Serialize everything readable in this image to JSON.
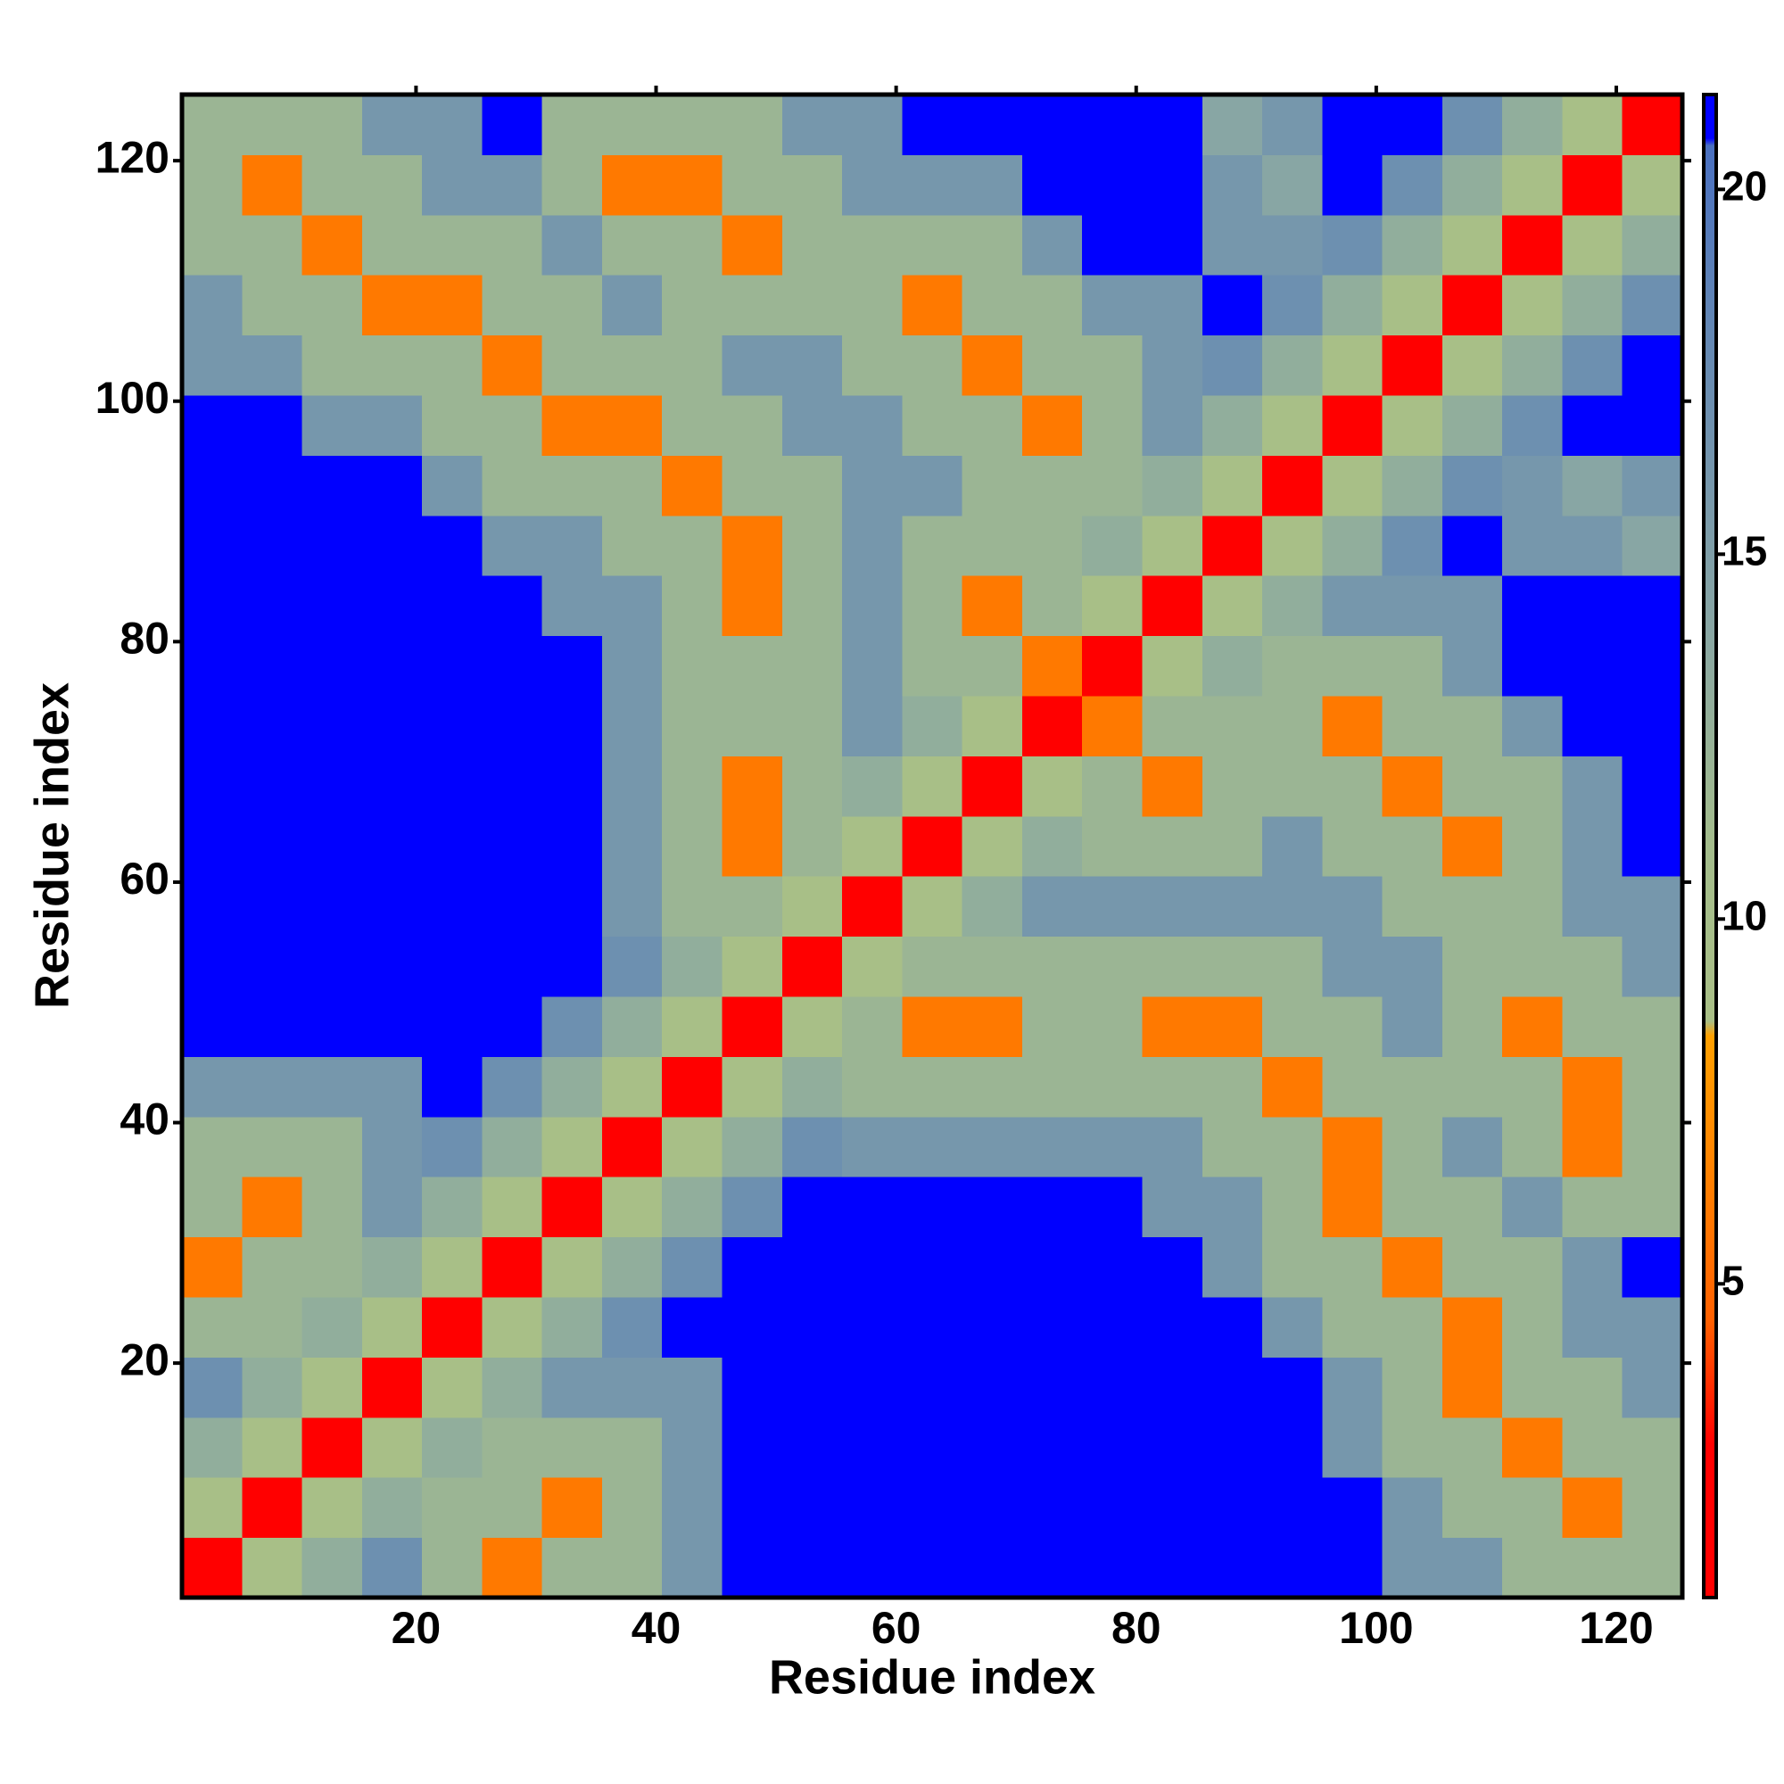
{
  "chart_data": {
    "type": "heatmap",
    "xlabel": "Residue index",
    "ylabel": "Residue index",
    "xlim": [
      0.5,
      125.5
    ],
    "ylim": [
      0.5,
      125.5
    ],
    "xticks": [
      20,
      40,
      60,
      80,
      100,
      120
    ],
    "yticks": [
      20,
      40,
      60,
      80,
      100,
      120
    ],
    "xbins": [
      0.5,
      5.5,
      10.5,
      15.5,
      20.5,
      25.5,
      30.5,
      35.5,
      40.5,
      45.5,
      50.5,
      55.5,
      60.5,
      65.5,
      70.5,
      75.5,
      80.5,
      85.5,
      90.5,
      95.5,
      100.5,
      105.5,
      110.5,
      115.5,
      120.5,
      125.5
    ],
    "ybins": [
      0.5,
      5.5,
      10.5,
      15.5,
      20.5,
      25.5,
      30.5,
      35.5,
      40.5,
      45.5,
      50.5,
      55.5,
      60.5,
      65.5,
      70.5,
      75.5,
      80.5,
      85.5,
      90.5,
      95.5,
      100.5,
      105.5,
      110.5,
      115.5,
      120.5,
      125.5
    ],
    "z": [
      [
        2,
        9,
        13,
        17,
        12,
        6,
        12,
        12,
        16,
        21,
        21,
        21,
        21,
        21,
        21,
        21,
        21,
        21,
        21,
        21,
        16,
        16,
        12,
        12,
        12
      ],
      [
        9,
        2,
        9,
        13,
        12,
        12,
        6,
        12,
        16,
        21,
        21,
        21,
        21,
        21,
        21,
        21,
        21,
        21,
        21,
        21,
        16,
        12,
        12,
        6,
        12
      ],
      [
        13,
        9,
        2,
        9,
        13,
        12,
        12,
        12,
        16,
        21,
        21,
        21,
        21,
        21,
        21,
        21,
        21,
        21,
        21,
        16,
        12,
        12,
        6,
        12,
        12
      ],
      [
        17,
        13,
        9,
        2,
        9,
        13,
        16,
        16,
        16,
        21,
        21,
        21,
        21,
        21,
        21,
        21,
        21,
        21,
        21,
        16,
        12,
        6,
        12,
        12,
        16
      ],
      [
        12,
        12,
        13,
        9,
        2,
        9,
        13,
        17,
        21,
        21,
        21,
        21,
        21,
        21,
        21,
        21,
        21,
        21,
        16,
        12,
        12,
        6,
        12,
        16,
        16
      ],
      [
        6,
        12,
        12,
        13,
        9,
        2,
        9,
        13,
        17,
        21,
        21,
        21,
        21,
        21,
        21,
        21,
        21,
        16,
        12,
        12,
        6,
        12,
        12,
        16,
        21
      ],
      [
        12,
        6,
        12,
        16,
        13,
        9,
        2,
        9,
        13,
        17,
        21,
        21,
        21,
        21,
        21,
        21,
        16,
        16,
        12,
        6,
        12,
        12,
        16,
        12,
        12
      ],
      [
        12,
        12,
        12,
        16,
        17,
        13,
        9,
        2,
        9,
        13,
        17,
        16,
        16,
        16,
        16,
        16,
        16,
        12,
        12,
        6,
        12,
        16,
        12,
        6,
        12
      ],
      [
        16,
        16,
        16,
        16,
        21,
        17,
        13,
        9,
        2,
        9,
        13,
        12,
        12,
        12,
        12,
        12,
        12,
        12,
        6,
        12,
        12,
        12,
        12,
        6,
        12
      ],
      [
        21,
        21,
        21,
        21,
        21,
        21,
        17,
        13,
        9,
        2,
        9,
        12,
        6,
        6,
        12,
        12,
        6,
        6,
        12,
        12,
        16,
        12,
        6,
        12,
        12
      ],
      [
        21,
        21,
        21,
        21,
        21,
        21,
        21,
        17,
        13,
        9,
        2,
        9,
        12,
        12,
        12,
        12,
        12,
        12,
        12,
        16,
        16,
        12,
        12,
        12,
        16
      ],
      [
        21,
        21,
        21,
        21,
        21,
        21,
        21,
        16,
        12,
        12,
        9,
        2,
        9,
        13,
        16,
        16,
        16,
        16,
        16,
        16,
        12,
        12,
        12,
        16,
        16
      ],
      [
        21,
        21,
        21,
        21,
        21,
        21,
        21,
        16,
        12,
        6,
        12,
        9,
        2,
        9,
        13,
        12,
        12,
        12,
        16,
        12,
        12,
        6,
        12,
        16,
        21
      ],
      [
        21,
        21,
        21,
        21,
        21,
        21,
        21,
        16,
        12,
        6,
        12,
        13,
        9,
        2,
        9,
        12,
        6,
        12,
        12,
        12,
        6,
        12,
        12,
        16,
        21
      ],
      [
        21,
        21,
        21,
        21,
        21,
        21,
        21,
        16,
        12,
        12,
        12,
        16,
        13,
        9,
        2,
        6,
        12,
        12,
        12,
        6,
        12,
        12,
        16,
        21,
        21
      ],
      [
        21,
        21,
        21,
        21,
        21,
        21,
        21,
        16,
        12,
        12,
        12,
        16,
        12,
        12,
        6,
        2,
        9,
        13,
        12,
        12,
        12,
        16,
        21,
        21,
        21
      ],
      [
        21,
        21,
        21,
        21,
        21,
        21,
        16,
        16,
        12,
        6,
        12,
        16,
        12,
        6,
        12,
        9,
        2,
        9,
        13,
        16,
        16,
        16,
        21,
        21,
        21
      ],
      [
        21,
        21,
        21,
        21,
        21,
        16,
        16,
        12,
        12,
        6,
        12,
        16,
        12,
        12,
        12,
        13,
        9,
        2,
        9,
        13,
        17,
        21,
        16,
        16,
        14
      ],
      [
        21,
        21,
        21,
        21,
        16,
        12,
        12,
        12,
        6,
        12,
        12,
        16,
        16,
        12,
        12,
        12,
        13,
        9,
        2,
        9,
        13,
        17,
        16,
        14,
        16
      ],
      [
        21,
        21,
        16,
        16,
        12,
        12,
        6,
        6,
        12,
        12,
        16,
        16,
        12,
        12,
        6,
        12,
        16,
        13,
        9,
        2,
        9,
        13,
        17,
        21,
        21
      ],
      [
        16,
        16,
        12,
        12,
        12,
        6,
        12,
        12,
        12,
        16,
        16,
        12,
        12,
        6,
        12,
        12,
        16,
        17,
        13,
        9,
        2,
        9,
        13,
        17,
        21
      ],
      [
        16,
        12,
        12,
        6,
        6,
        12,
        12,
        16,
        12,
        12,
        12,
        12,
        6,
        12,
        12,
        16,
        16,
        21,
        17,
        13,
        9,
        2,
        9,
        13,
        17
      ],
      [
        12,
        12,
        6,
        12,
        12,
        12,
        16,
        12,
        12,
        6,
        12,
        12,
        12,
        12,
        16,
        21,
        21,
        16,
        16,
        17,
        13,
        9,
        2,
        9,
        13
      ],
      [
        12,
        6,
        12,
        12,
        16,
        16,
        12,
        6,
        6,
        12,
        12,
        16,
        16,
        16,
        21,
        21,
        21,
        16,
        14,
        21,
        17,
        13,
        9,
        2,
        9
      ],
      [
        12,
        12,
        12,
        16,
        16,
        21,
        12,
        12,
        12,
        12,
        16,
        16,
        21,
        21,
        21,
        21,
        21,
        14,
        16,
        21,
        21,
        17,
        13,
        9,
        2
      ]
    ],
    "colorscale": [
      [
        0.7,
        "#ff0000"
      ],
      [
        2.8,
        "#ff0000"
      ],
      [
        4.5,
        "#ff6000"
      ],
      [
        8.4,
        "#ffa000"
      ],
      [
        8.6,
        "#a9bf86"
      ],
      [
        11,
        "#a4bd8c"
      ],
      [
        14,
        "#88a6a4"
      ],
      [
        18,
        "#6488b4"
      ],
      [
        20.6,
        "#4a70c0"
      ],
      [
        20.7,
        "#0000ff"
      ],
      [
        21.3,
        "#0000ff"
      ]
    ],
    "clim": [
      0.7,
      21.3
    ],
    "cticks": [
      5,
      10,
      15,
      20
    ]
  }
}
